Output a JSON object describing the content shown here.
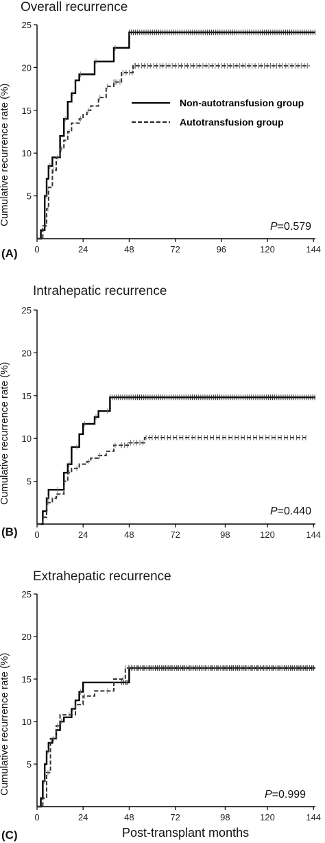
{
  "chart_data": [
    {
      "type": "line",
      "panel_label": "(A)",
      "title": "Overall recurrence",
      "ylabel": "Cumulative recurrence rate (%)",
      "xlabel": "",
      "xlim": [
        0,
        145
      ],
      "ylim": [
        0,
        25
      ],
      "x_ticks": [
        0,
        24,
        48,
        72,
        96,
        120,
        144
      ],
      "y_ticks": [
        5,
        10,
        15,
        20,
        25
      ],
      "annotation": "P=0.579",
      "legend": [
        "Non-autotransfusion group",
        "Autotransfusion group"
      ],
      "series": [
        {
          "name": "Non-autotransfusion group",
          "style": "solid",
          "x": [
            0,
            2,
            4,
            5,
            6,
            8,
            10,
            12,
            14,
            16,
            18,
            20,
            22,
            26,
            30,
            36,
            40,
            46,
            48,
            145
          ],
          "y": [
            0,
            1,
            5,
            7,
            8.5,
            9.5,
            9.5,
            12,
            14,
            16,
            17,
            18.5,
            19.2,
            19.2,
            20.7,
            20.7,
            22.3,
            22.3,
            24.1,
            24.1
          ],
          "censor_start": 48
        },
        {
          "name": "Autotransfusion group",
          "style": "dashed",
          "x": [
            0,
            3,
            5,
            6,
            8,
            10,
            12,
            14,
            16,
            18,
            22,
            24,
            26,
            28,
            32,
            34,
            36,
            38,
            40,
            42,
            44,
            46,
            50,
            55,
            142
          ],
          "y": [
            0,
            1.5,
            3.5,
            6,
            8,
            9.5,
            10.5,
            11.5,
            12.5,
            13.5,
            14,
            14.5,
            15,
            15.5,
            16.5,
            16.5,
            17.8,
            17.8,
            18.3,
            18.3,
            19.4,
            19.4,
            20.2,
            20.2,
            20.2
          ],
          "censor_start": 40
        }
      ]
    },
    {
      "type": "line",
      "panel_label": "(B)",
      "title": "Intrahepatic recurrence",
      "ylabel": "Cumulative recurrence rate (%)",
      "xlabel": "",
      "xlim": [
        0,
        145
      ],
      "ylim": [
        0,
        25
      ],
      "x_ticks": [
        0,
        24,
        48,
        72,
        98,
        120,
        144
      ],
      "y_ticks": [
        5,
        10,
        15,
        20,
        25
      ],
      "annotation": "P=0.440",
      "series": [
        {
          "name": "Non-autotransfusion group",
          "style": "solid",
          "x": [
            0,
            3,
            5,
            6,
            10,
            14,
            16,
            18,
            20,
            22,
            24,
            28,
            30,
            32,
            36,
            38,
            145
          ],
          "y": [
            0,
            1.5,
            3,
            4,
            4,
            6,
            7,
            9,
            9,
            10.5,
            11.7,
            11.7,
            12.5,
            13.2,
            13.2,
            14.8,
            14.8
          ],
          "censor_start": 38
        },
        {
          "name": "Autotransfusion group",
          "style": "dashed",
          "x": [
            0,
            3,
            5,
            8,
            10,
            14,
            16,
            18,
            20,
            22,
            26,
            28,
            32,
            36,
            40,
            44,
            48,
            54,
            56,
            140
          ],
          "y": [
            0,
            0.8,
            2.5,
            3,
            3.5,
            5,
            6,
            6.5,
            6.5,
            7,
            7.3,
            7.7,
            8,
            8.5,
            9.2,
            9.2,
            9.5,
            9.5,
            10.1,
            10.1
          ],
          "censor_start": 44
        }
      ]
    },
    {
      "type": "line",
      "panel_label": "(C)",
      "title": "Extrahepatic recurrence",
      "ylabel": "Cumulative recurrence rate (%)",
      "xlabel": "Post-transplant months",
      "xlim": [
        0,
        145
      ],
      "ylim": [
        0,
        25
      ],
      "x_ticks": [
        0,
        24,
        48,
        72,
        98,
        120,
        144
      ],
      "y_ticks": [
        5,
        10,
        15,
        20,
        25
      ],
      "annotation": "P=0.999",
      "series": [
        {
          "name": "Non-autotransfusion group",
          "style": "solid",
          "x": [
            0,
            2,
            3,
            4,
            5,
            6,
            8,
            10,
            12,
            14,
            18,
            20,
            22,
            24,
            46,
            48,
            145
          ],
          "y": [
            0,
            1,
            3,
            5,
            6.5,
            7.5,
            8,
            9,
            10,
            10.5,
            11.5,
            12.5,
            13.5,
            14.6,
            14.6,
            16.3,
            16.3
          ],
          "censor_start": 44
        },
        {
          "name": "Autotransfusion group",
          "style": "dashed",
          "x": [
            0,
            3,
            5,
            7,
            10,
            12,
            16,
            20,
            24,
            30,
            36,
            40,
            44,
            46,
            145
          ],
          "y": [
            0,
            1,
            4,
            8,
            9.5,
            10.8,
            10.8,
            12,
            13,
            13.6,
            13.6,
            15,
            15,
            16.3,
            16.3
          ],
          "censor_start": 46
        }
      ]
    }
  ]
}
